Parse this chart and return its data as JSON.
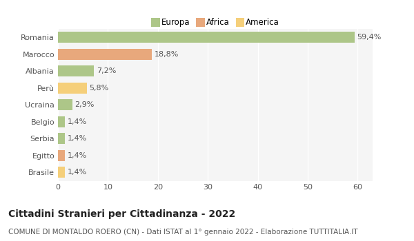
{
  "categories": [
    "Romania",
    "Marocco",
    "Albania",
    "Perù",
    "Ucraina",
    "Belgio",
    "Serbia",
    "Egitto",
    "Brasile"
  ],
  "values": [
    59.4,
    18.8,
    7.2,
    5.8,
    2.9,
    1.4,
    1.4,
    1.4,
    1.4
  ],
  "colors": [
    "#adc688",
    "#e8a87c",
    "#adc688",
    "#f5cf7a",
    "#adc688",
    "#adc688",
    "#adc688",
    "#e8a87c",
    "#f5cf7a"
  ],
  "labels": [
    "59,4%",
    "18,8%",
    "7,2%",
    "5,8%",
    "2,9%",
    "1,4%",
    "1,4%",
    "1,4%",
    "1,4%"
  ],
  "legend": [
    {
      "label": "Europa",
      "color": "#adc688"
    },
    {
      "label": "Africa",
      "color": "#e8a87c"
    },
    {
      "label": "America",
      "color": "#f5cf7a"
    }
  ],
  "xlim": [
    0,
    63
  ],
  "xticks": [
    0,
    10,
    20,
    30,
    40,
    50,
    60
  ],
  "title": "Cittadini Stranieri per Cittadinanza - 2022",
  "subtitle": "COMUNE DI MONTALDO ROERO (CN) - Dati ISTAT al 1° gennaio 2022 - Elaborazione TUTTITALIA.IT",
  "background_color": "#ffffff",
  "plot_bg_color": "#f5f5f5",
  "grid_color": "#ffffff",
  "bar_height": 0.65,
  "title_fontsize": 10,
  "subtitle_fontsize": 7.5,
  "label_fontsize": 8,
  "tick_fontsize": 8,
  "legend_fontsize": 8.5
}
